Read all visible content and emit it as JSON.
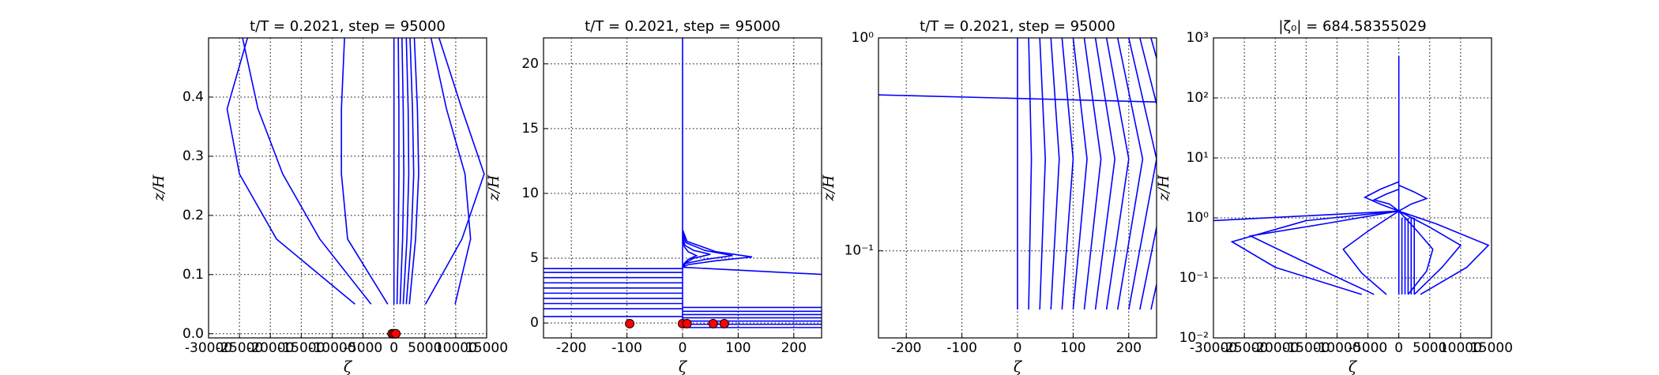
{
  "chart_data": [
    {
      "type": "line",
      "title": "t/T = 0.2021, step = 95000",
      "xlabel": "ζ",
      "ylabel": "z/H",
      "xlim": [
        -30000,
        15000
      ],
      "ylim": [
        -0.007,
        0.5
      ],
      "yscale": "linear",
      "grid": true,
      "xticks": [
        -30000,
        -25000,
        -20000,
        -15000,
        -10000,
        -5000,
        0,
        5000,
        10000,
        15000
      ],
      "yticks": [
        {
          "value": 0,
          "label": "0.0"
        },
        0.1,
        0.2,
        0.3,
        0.4
      ],
      "series": [
        {
          "color": "#0000ff",
          "x": [
            -6300,
            -19000,
            -25000,
            -27000,
            -23700
          ],
          "values": [
            0.05,
            0.16,
            0.27,
            0.38,
            0.5
          ]
        },
        {
          "color": "#0000ff",
          "x": [
            -3700,
            -12000,
            -18000,
            -22000,
            -24500
          ],
          "values": [
            0.05,
            0.16,
            0.27,
            0.38,
            0.5
          ]
        },
        {
          "color": "#0000ff",
          "x": [
            -1000,
            -7500,
            -8500,
            -8500,
            -8000
          ],
          "values": [
            0.05,
            0.16,
            0.27,
            0.38,
            0.5
          ]
        },
        {
          "color": "#0000ff",
          "x": [
            5100,
            11000,
            14600,
            11000,
            7300
          ],
          "values": [
            0.05,
            0.16,
            0.27,
            0.38,
            0.5
          ]
        },
        {
          "color": "#0000ff",
          "x": [
            9900,
            12400,
            11500,
            8500,
            6000
          ],
          "values": [
            0.05,
            0.16,
            0.27,
            0.38,
            0.5
          ]
        },
        {
          "color": "#0000ff",
          "x": [
            0,
            0,
            0,
            0,
            0
          ],
          "values": [
            0.05,
            0.16,
            0.27,
            0.38,
            0.5
          ]
        },
        {
          "color": "#0000ff",
          "x": [
            500,
            700,
            800,
            800,
            700
          ],
          "values": [
            0.05,
            0.16,
            0.27,
            0.38,
            0.5
          ]
        },
        {
          "color": "#0000ff",
          "x": [
            1000,
            1400,
            1600,
            1500,
            1300
          ],
          "values": [
            0.05,
            0.16,
            0.27,
            0.38,
            0.5
          ]
        },
        {
          "color": "#0000ff",
          "x": [
            1500,
            2100,
            2400,
            2300,
            2000
          ],
          "values": [
            0.05,
            0.16,
            0.27,
            0.38,
            0.5
          ]
        },
        {
          "color": "#0000ff",
          "x": [
            2000,
            2800,
            3200,
            3000,
            2600
          ],
          "values": [
            0.05,
            0.16,
            0.27,
            0.38,
            0.5
          ]
        },
        {
          "color": "#0000ff",
          "x": [
            2500,
            3500,
            4000,
            3800,
            3300
          ],
          "values": [
            0.05,
            0.16,
            0.27,
            0.38,
            0.5
          ]
        },
        {
          "color": "#ff0000",
          "marker": "o",
          "x": [
            -300,
            0,
            300
          ],
          "values": [
            0,
            0,
            0
          ]
        }
      ]
    },
    {
      "type": "line",
      "title": "t/T = 0.2021, step = 95000",
      "xlabel": "ζ",
      "ylabel": "z/H",
      "xlim": [
        -250,
        250
      ],
      "ylim": [
        -1.15,
        22
      ],
      "yscale": "linear",
      "grid": true,
      "xticks": [
        -200,
        -100,
        0,
        100,
        200
      ],
      "yticks": [
        0,
        5,
        10,
        15,
        20
      ],
      "series": [
        {
          "color": "#0000ff",
          "x": [
            0,
            0
          ],
          "values": [
            4.3,
            22
          ]
        },
        {
          "color": "#0000ff",
          "x": [
            0,
            8,
            60,
            125,
            60,
            10,
            0
          ],
          "values": [
            7.2,
            6.3,
            5.5,
            5.1,
            4.8,
            4.5,
            4.3
          ]
        },
        {
          "color": "#0000ff",
          "x": [
            0,
            6,
            40,
            90,
            40,
            6,
            0
          ],
          "values": [
            7.0,
            6.2,
            5.6,
            5.2,
            4.9,
            4.6,
            4.3
          ]
        },
        {
          "color": "#0000ff",
          "x": [
            0,
            4,
            20,
            50,
            20,
            4,
            0
          ],
          "values": [
            6.8,
            6.0,
            5.6,
            5.3,
            5.0,
            4.6,
            4.3
          ]
        },
        {
          "color": "#0000ff",
          "x": [
            0,
            3,
            10,
            25,
            10,
            3,
            0
          ],
          "values": [
            6.6,
            5.9,
            5.5,
            5.2,
            4.9,
            4.6,
            4.3
          ]
        },
        {
          "color": "#0000ff",
          "x": [
            0,
            250
          ],
          "values": [
            4.3,
            3.75
          ]
        },
        {
          "color": "#0000ff",
          "x": [
            0,
            0
          ],
          "values": [
            -0.4,
            4.3
          ]
        },
        {
          "color": "#0000ff",
          "x": [
            -250,
            0
          ],
          "values": [
            0.5,
            0.5
          ]
        },
        {
          "color": "#0000ff",
          "x": [
            -250,
            0
          ],
          "values": [
            1.1,
            1.1
          ]
        },
        {
          "color": "#0000ff",
          "x": [
            -250,
            0
          ],
          "values": [
            1.5,
            1.5
          ]
        },
        {
          "color": "#0000ff",
          "x": [
            -250,
            0
          ],
          "values": [
            1.9,
            1.9
          ]
        },
        {
          "color": "#0000ff",
          "x": [
            -250,
            0
          ],
          "values": [
            2.3,
            2.3
          ]
        },
        {
          "color": "#0000ff",
          "x": [
            -250,
            0
          ],
          "values": [
            2.7,
            2.7
          ]
        },
        {
          "color": "#0000ff",
          "x": [
            -250,
            0
          ],
          "values": [
            3.1,
            3.1
          ]
        },
        {
          "color": "#0000ff",
          "x": [
            -250,
            0
          ],
          "values": [
            3.5,
            3.5
          ]
        },
        {
          "color": "#0000ff",
          "x": [
            -250,
            0
          ],
          "values": [
            3.9,
            3.9
          ]
        },
        {
          "color": "#0000ff",
          "x": [
            -250,
            0
          ],
          "values": [
            4.2,
            4.2
          ]
        },
        {
          "color": "#0000ff",
          "x": [
            0,
            250
          ],
          "values": [
            -0.35,
            -0.35
          ]
        },
        {
          "color": "#0000ff",
          "x": [
            0,
            250
          ],
          "values": [
            -0.1,
            -0.1
          ]
        },
        {
          "color": "#0000ff",
          "x": [
            0,
            250
          ],
          "values": [
            0.15,
            0.15
          ]
        },
        {
          "color": "#0000ff",
          "x": [
            0,
            250
          ],
          "values": [
            0.4,
            0.4
          ]
        },
        {
          "color": "#0000ff",
          "x": [
            0,
            250
          ],
          "values": [
            0.65,
            0.65
          ]
        },
        {
          "color": "#0000ff",
          "x": [
            0,
            250
          ],
          "values": [
            0.9,
            0.9
          ]
        },
        {
          "color": "#0000ff",
          "x": [
            0,
            250
          ],
          "values": [
            1.2,
            1.2
          ]
        },
        {
          "color": "#ff0000",
          "marker": "o",
          "x": [
            -95,
            0,
            8,
            55,
            75
          ],
          "values": [
            -0.05,
            -0.05,
            -0.05,
            -0.05,
            -0.05
          ]
        }
      ]
    },
    {
      "type": "line",
      "title": "t/T = 0.2021, step = 95000",
      "xlabel": "ζ",
      "ylabel": "z/H",
      "xlim": [
        -250,
        250
      ],
      "ylim": [
        0.039,
        1
      ],
      "yscale": "log",
      "grid": true,
      "xticks": [
        -200,
        -100,
        0,
        100,
        200
      ],
      "yticks": [
        {
          "value": 0.1,
          "label": "10⁻¹"
        },
        {
          "value": 1,
          "label": "10⁰"
        }
      ],
      "series": [
        {
          "color": "#0000ff",
          "x": [
            -250,
            250
          ],
          "values": [
            0.54,
            0.5
          ]
        },
        {
          "color": "#0000ff",
          "x": [
            0,
            0,
            0
          ],
          "values": [
            0.053,
            0.27,
            1
          ]
        },
        {
          "color": "#0000ff",
          "x": [
            20,
            25,
            20
          ],
          "values": [
            0.053,
            0.27,
            1
          ]
        },
        {
          "color": "#0000ff",
          "x": [
            40,
            50,
            40
          ],
          "values": [
            0.053,
            0.27,
            1
          ]
        },
        {
          "color": "#0000ff",
          "x": [
            60,
            75,
            60
          ],
          "values": [
            0.053,
            0.27,
            1
          ]
        },
        {
          "color": "#0000ff",
          "x": [
            80,
            100,
            80
          ],
          "values": [
            0.053,
            0.27,
            1
          ]
        },
        {
          "color": "#0000ff",
          "x": [
            100,
            125,
            100
          ],
          "values": [
            0.053,
            0.27,
            1
          ]
        },
        {
          "color": "#0000ff",
          "x": [
            120,
            150,
            120
          ],
          "values": [
            0.053,
            0.27,
            1
          ]
        },
        {
          "color": "#0000ff",
          "x": [
            140,
            175,
            140
          ],
          "values": [
            0.053,
            0.27,
            1
          ]
        },
        {
          "color": "#0000ff",
          "x": [
            160,
            200,
            160
          ],
          "values": [
            0.053,
            0.27,
            1
          ]
        },
        {
          "color": "#0000ff",
          "x": [
            180,
            225,
            180
          ],
          "values": [
            0.053,
            0.27,
            1
          ]
        },
        {
          "color": "#0000ff",
          "x": [
            200,
            250,
            200
          ],
          "values": [
            0.053,
            0.27,
            1
          ]
        },
        {
          "color": "#0000ff",
          "x": [
            220,
            275,
            220
          ],
          "values": [
            0.053,
            0.27,
            1
          ]
        },
        {
          "color": "#0000ff",
          "x": [
            240,
            300,
            240
          ],
          "values": [
            0.053,
            0.27,
            1
          ]
        }
      ]
    },
    {
      "type": "line",
      "title": "|ζ₀| = 684.58355029",
      "xlabel": "ζ",
      "ylabel": "z/H",
      "xlim": [
        -30000,
        15000
      ],
      "ylim": [
        0.01,
        1000
      ],
      "yscale": "log",
      "grid": true,
      "xticks": [
        -30000,
        -25000,
        -20000,
        -15000,
        -10000,
        -5000,
        0,
        5000,
        10000,
        15000
      ],
      "yticks": [
        {
          "value": 0.01,
          "label": "10⁻²"
        },
        {
          "value": 0.1,
          "label": "10⁻¹"
        },
        {
          "value": 1,
          "label": "10⁰"
        },
        {
          "value": 10,
          "label": "10¹"
        },
        {
          "value": 100,
          "label": "10²"
        },
        {
          "value": 1000,
          "label": "10³"
        }
      ],
      "series": [
        {
          "color": "#0000ff",
          "x": [
            0,
            0
          ],
          "values": [
            0.053,
            500
          ]
        },
        {
          "color": "#0000ff",
          "x": [
            0,
            -15000,
            -27000,
            -20000,
            -6000
          ],
          "values": [
            1.3,
            0.9,
            0.4,
            0.15,
            0.053
          ]
        },
        {
          "color": "#0000ff",
          "x": [
            0,
            -12000,
            -24000,
            -16000,
            -4000
          ],
          "values": [
            1.3,
            0.8,
            0.5,
            0.2,
            0.053
          ]
        },
        {
          "color": "#0000ff",
          "x": [
            0,
            -5000,
            -9000,
            -6000,
            -2000
          ],
          "values": [
            1.3,
            0.6,
            0.3,
            0.12,
            0.053
          ]
        },
        {
          "color": "#0000ff",
          "x": [
            0,
            6000,
            14500,
            11000,
            3500
          ],
          "values": [
            1.3,
            0.8,
            0.35,
            0.15,
            0.053
          ]
        },
        {
          "color": "#0000ff",
          "x": [
            0,
            5000,
            10000,
            7000,
            2500
          ],
          "values": [
            1.3,
            0.7,
            0.35,
            0.15,
            0.053
          ]
        },
        {
          "color": "#0000ff",
          "x": [
            0,
            3000,
            5500,
            4500,
            1500
          ],
          "values": [
            1.3,
            0.6,
            0.3,
            0.13,
            0.053
          ]
        },
        {
          "color": "#0000ff",
          "x": [
            0,
            -3000,
            -5500,
            -3000,
            0
          ],
          "values": [
            4,
            3,
            2.2,
            1.7,
            1.3
          ]
        },
        {
          "color": "#0000ff",
          "x": [
            0,
            -2000,
            -4000,
            -1500,
            0
          ],
          "values": [
            3,
            2.5,
            2,
            1.7,
            1.3
          ]
        },
        {
          "color": "#0000ff",
          "x": [
            0,
            2500,
            4500,
            2000,
            0
          ],
          "values": [
            3.5,
            2.7,
            2.1,
            1.7,
            1.3
          ]
        },
        {
          "color": "#0000ff",
          "x": [
            -30000,
            0
          ],
          "values": [
            0.9,
            1.3
          ]
        },
        {
          "color": "#0000ff",
          "x": [
            500,
            500
          ],
          "values": [
            0.053,
            1
          ]
        },
        {
          "color": "#0000ff",
          "x": [
            1000,
            1000
          ],
          "values": [
            0.053,
            1
          ]
        },
        {
          "color": "#0000ff",
          "x": [
            1500,
            1500
          ],
          "values": [
            0.053,
            1
          ]
        },
        {
          "color": "#0000ff",
          "x": [
            2000,
            2000
          ],
          "values": [
            0.053,
            1
          ]
        },
        {
          "color": "#0000ff",
          "x": [
            2500,
            2500
          ],
          "values": [
            0.053,
            1
          ]
        }
      ]
    }
  ]
}
